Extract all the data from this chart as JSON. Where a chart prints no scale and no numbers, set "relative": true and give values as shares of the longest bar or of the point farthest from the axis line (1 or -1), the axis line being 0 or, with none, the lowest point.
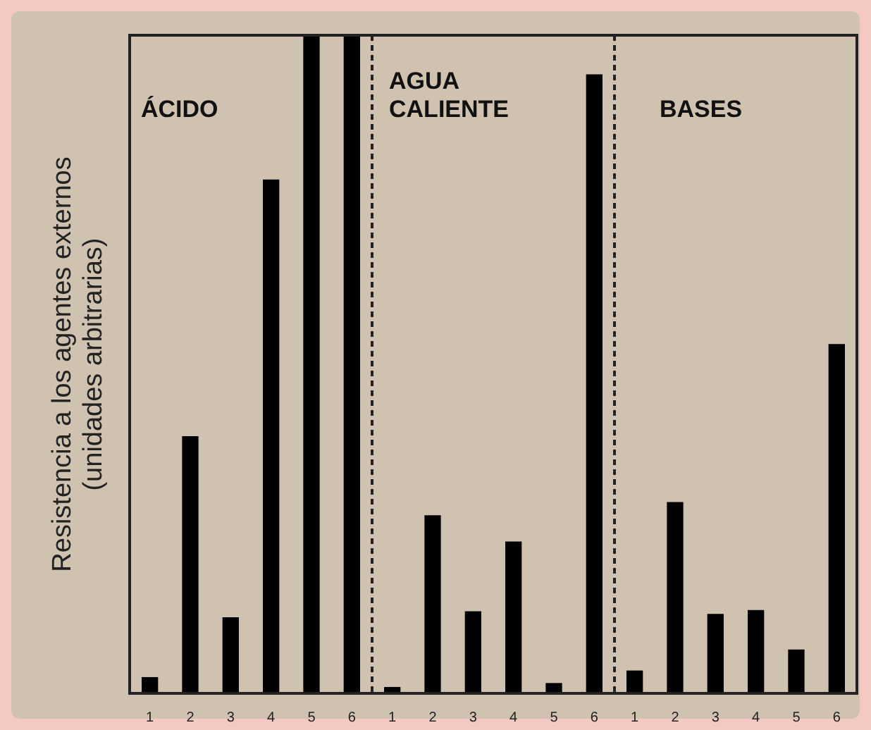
{
  "chart_data": {
    "type": "bar",
    "ylabel": "Resistencia a los agentes externos (unidades arbitrarias)",
    "relative": true,
    "annotations": [
      "ÁCIDO",
      "AGUA CALIENTE",
      "BASES"
    ],
    "categories": [
      "1",
      "2",
      "3",
      "4",
      "5",
      "6",
      "1",
      "2",
      "3",
      "4",
      "5",
      "6",
      "1",
      "2",
      "3",
      "4",
      "5",
      "6"
    ],
    "color": "#000000",
    "values": [
      0.024,
      0.39,
      0.115,
      0.78,
      1,
      1,
      0.009,
      0.27,
      0.124,
      0.23,
      0.015,
      0.94,
      0.034,
      0.29,
      0.12,
      0.126,
      0.066,
      0.53
    ]
  }
}
